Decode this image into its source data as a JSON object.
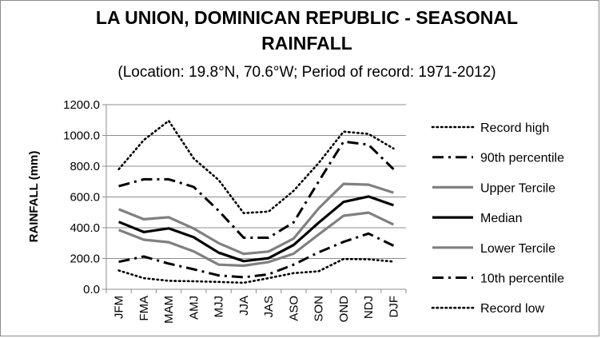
{
  "chart_data": {
    "type": "line",
    "title_line1": "LA UNION, DOMINICAN REPUBLIC - SEASONAL",
    "title_line2": "RAINFALL",
    "subtitle": "(Location: 19.8°N, 70.6°W; Period of record: 1971-2012)",
    "xlabel": "",
    "ylabel": "RAINFALL (mm)",
    "ylim": [
      0,
      1200
    ],
    "yticks": [
      "0.0",
      "200.0",
      "400.0",
      "600.0",
      "800.0",
      "1000.0",
      "1200.0"
    ],
    "categories": [
      "JFM",
      "FMA",
      "MAM",
      "AMJ",
      "MJJ",
      "JJA",
      "JAS",
      "ASO",
      "SON",
      "OND",
      "NDJ",
      "DJF"
    ],
    "grid": "horizontal",
    "legend_position": "right",
    "series": [
      {
        "name": "Record high",
        "style": "dotted",
        "color": "#000000",
        "values": [
          780,
          970,
          1095,
          850,
          710,
          495,
          505,
          640,
          820,
          1025,
          1010,
          915
        ]
      },
      {
        "name": "90th percentile",
        "style": "dashdot",
        "color": "#000000",
        "values": [
          670,
          715,
          715,
          665,
          510,
          335,
          335,
          435,
          700,
          960,
          940,
          780
        ]
      },
      {
        "name": "Upper Tercile",
        "style": "solid-gray",
        "color": "#808080",
        "values": [
          520,
          455,
          468,
          395,
          300,
          230,
          245,
          330,
          525,
          685,
          680,
          628
        ]
      },
      {
        "name": "Median",
        "style": "solid-black",
        "color": "#000000",
        "values": [
          438,
          372,
          396,
          338,
          238,
          183,
          202,
          288,
          432,
          568,
          603,
          546
        ]
      },
      {
        "name": "Lower Tercile",
        "style": "solid-gray",
        "color": "#808080",
        "values": [
          386,
          322,
          306,
          246,
          160,
          153,
          177,
          231,
          356,
          478,
          498,
          420
        ]
      },
      {
        "name": "10th percentile",
        "style": "dashdot",
        "color": "#000000",
        "values": [
          178,
          213,
          167,
          130,
          90,
          78,
          97,
          160,
          240,
          308,
          362,
          283
        ]
      },
      {
        "name": "Record low",
        "style": "dotted",
        "color": "#000000",
        "values": [
          122,
          72,
          55,
          52,
          48,
          42,
          72,
          105,
          117,
          197,
          195,
          180
        ]
      }
    ]
  }
}
